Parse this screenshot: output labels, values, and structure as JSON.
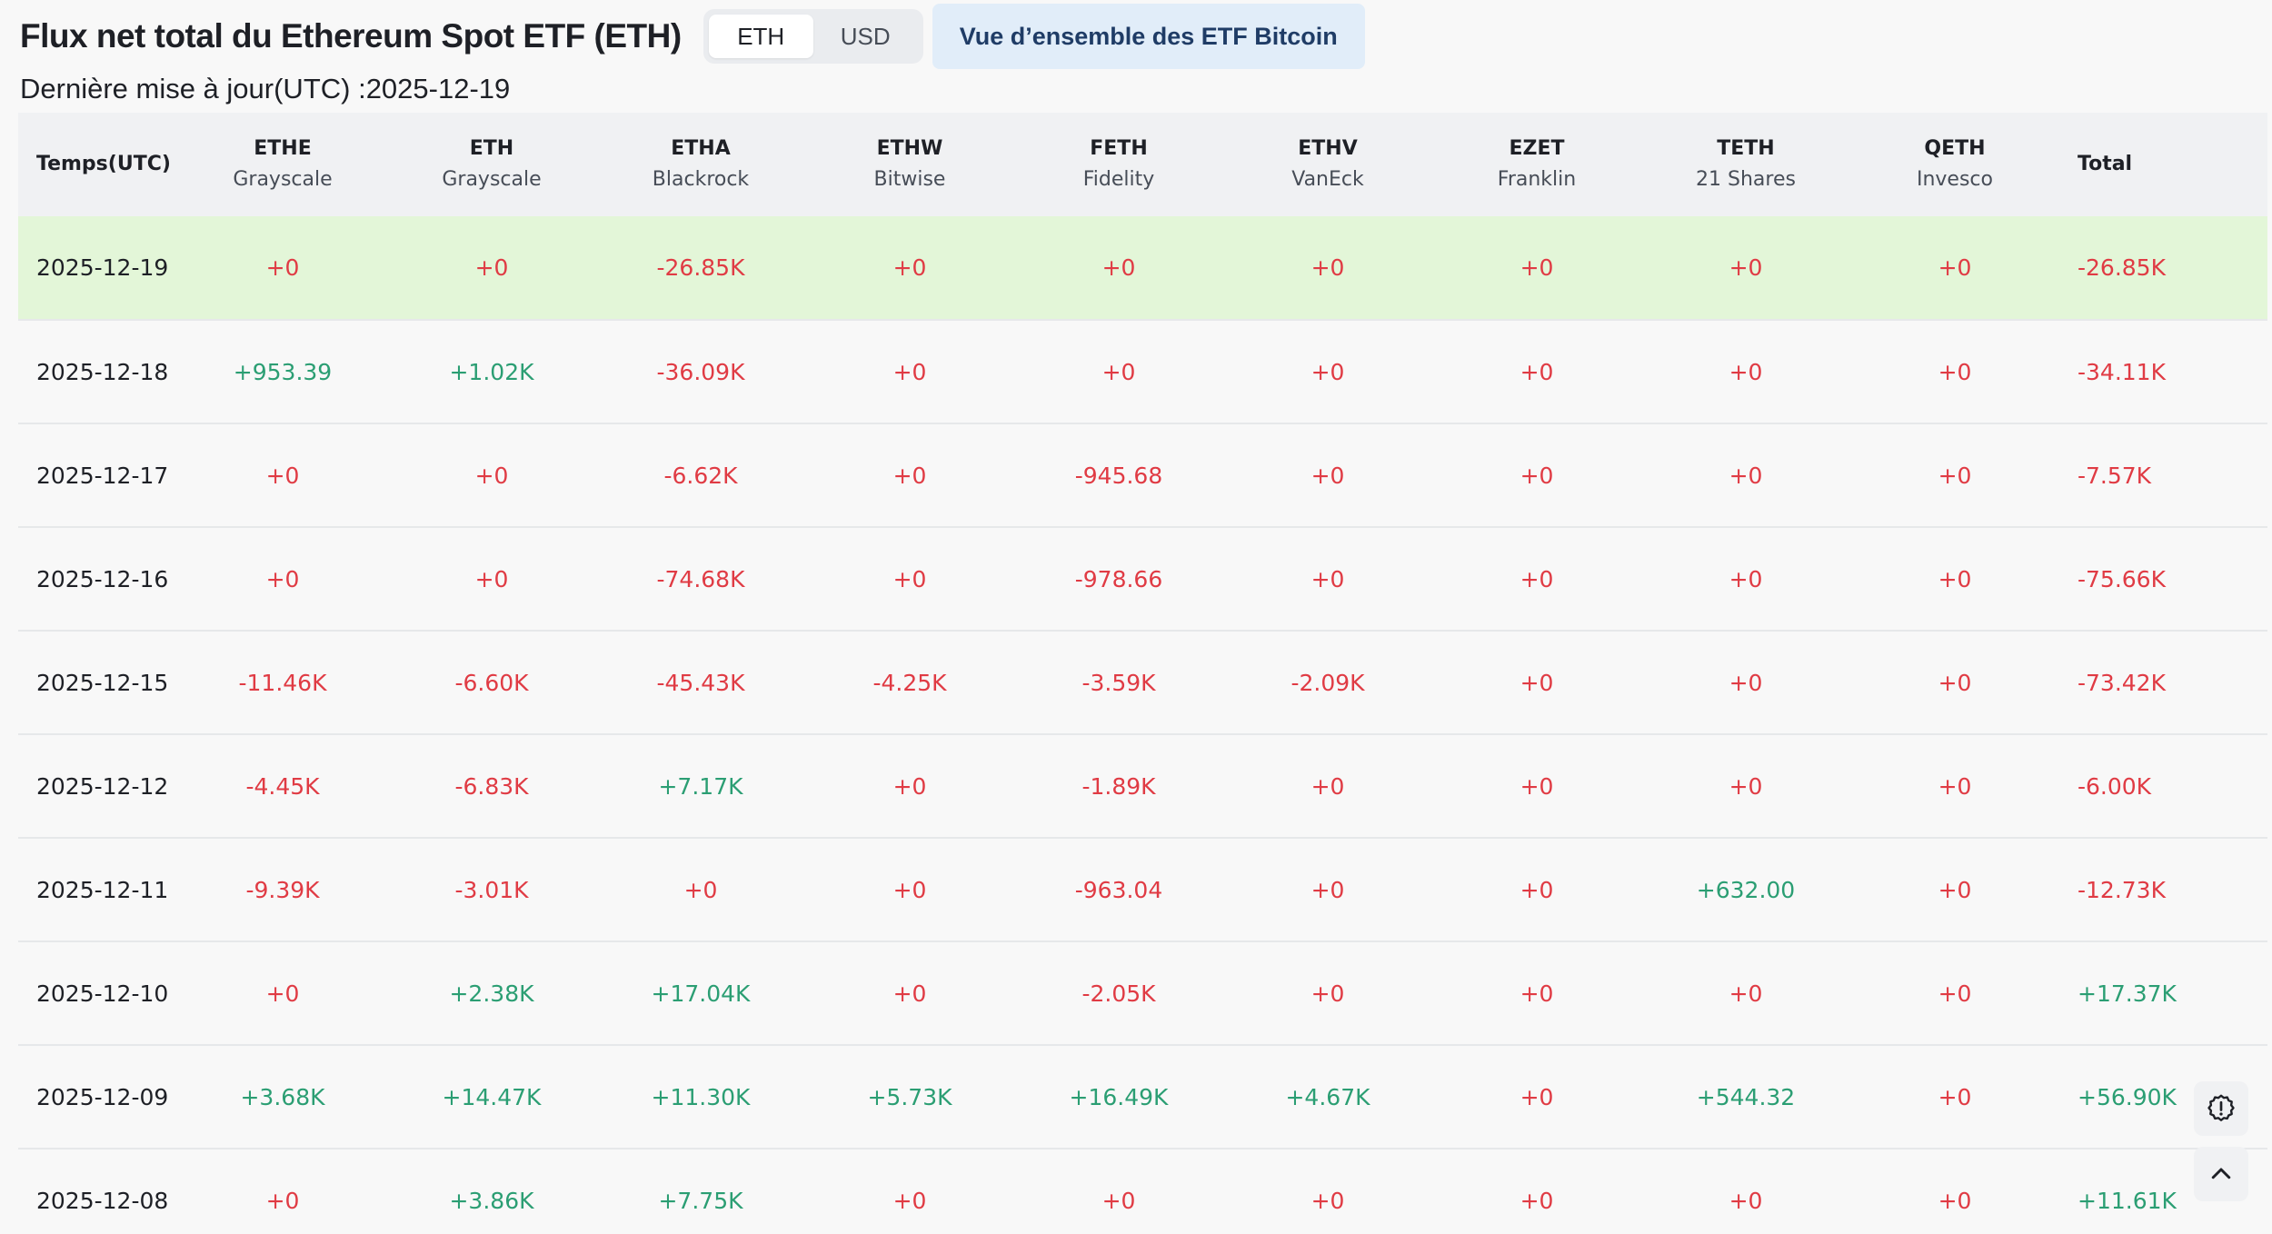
{
  "header": {
    "title": "Flux net total du Ethereum Spot ETF (ETH)",
    "currency_toggle": [
      "ETH",
      "USD"
    ],
    "active_currency": "ETH",
    "overview_button": "Vue d’ensemble des ETF Bitcoin",
    "last_updated": "Dernière mise à jour(UTC) :2025-12-19"
  },
  "colors": {
    "positive": "#2b9e73",
    "negative": "#e03b44",
    "highlight_row": "#e3f6d8",
    "overview_bg": "#e1edf9"
  },
  "table": {
    "date_header": "Temps(UTC)",
    "total_header": "Total",
    "columns": [
      {
        "symbol": "ETHE",
        "issuer": "Grayscale"
      },
      {
        "symbol": "ETH",
        "issuer": "Grayscale"
      },
      {
        "symbol": "ETHA",
        "issuer": "Blackrock"
      },
      {
        "symbol": "ETHW",
        "issuer": "Bitwise"
      },
      {
        "symbol": "FETH",
        "issuer": "Fidelity"
      },
      {
        "symbol": "ETHV",
        "issuer": "VanEck"
      },
      {
        "symbol": "EZET",
        "issuer": "Franklin"
      },
      {
        "symbol": "TETH",
        "issuer": "21 Shares"
      },
      {
        "symbol": "QETH",
        "issuer": "Invesco"
      }
    ],
    "rows": [
      {
        "date": "2025-12-19",
        "highlight": true,
        "values": [
          "+0",
          "+0",
          "-26.85K",
          "+0",
          "+0",
          "+0",
          "+0",
          "+0",
          "+0"
        ],
        "total": "-26.85K"
      },
      {
        "date": "2025-12-18",
        "highlight": false,
        "values": [
          "+953.39",
          "+1.02K",
          "-36.09K",
          "+0",
          "+0",
          "+0",
          "+0",
          "+0",
          "+0"
        ],
        "total": "-34.11K"
      },
      {
        "date": "2025-12-17",
        "highlight": false,
        "values": [
          "+0",
          "+0",
          "-6.62K",
          "+0",
          "-945.68",
          "+0",
          "+0",
          "+0",
          "+0"
        ],
        "total": "-7.57K"
      },
      {
        "date": "2025-12-16",
        "highlight": false,
        "values": [
          "+0",
          "+0",
          "-74.68K",
          "+0",
          "-978.66",
          "+0",
          "+0",
          "+0",
          "+0"
        ],
        "total": "-75.66K"
      },
      {
        "date": "2025-12-15",
        "highlight": false,
        "values": [
          "-11.46K",
          "-6.60K",
          "-45.43K",
          "-4.25K",
          "-3.59K",
          "-2.09K",
          "+0",
          "+0",
          "+0"
        ],
        "total": "-73.42K"
      },
      {
        "date": "2025-12-12",
        "highlight": false,
        "values": [
          "-4.45K",
          "-6.83K",
          "+7.17K",
          "+0",
          "-1.89K",
          "+0",
          "+0",
          "+0",
          "+0"
        ],
        "total": "-6.00K"
      },
      {
        "date": "2025-12-11",
        "highlight": false,
        "values": [
          "-9.39K",
          "-3.01K",
          "+0",
          "+0",
          "-963.04",
          "+0",
          "+0",
          "+632.00",
          "+0"
        ],
        "total": "-12.73K"
      },
      {
        "date": "2025-12-10",
        "highlight": false,
        "values": [
          "+0",
          "+2.38K",
          "+17.04K",
          "+0",
          "-2.05K",
          "+0",
          "+0",
          "+0",
          "+0"
        ],
        "total": "+17.37K"
      },
      {
        "date": "2025-12-09",
        "highlight": false,
        "values": [
          "+3.68K",
          "+14.47K",
          "+11.30K",
          "+5.73K",
          "+16.49K",
          "+4.67K",
          "+0",
          "+544.32",
          "+0"
        ],
        "total": "+56.90K"
      },
      {
        "date": "2025-12-08",
        "highlight": false,
        "values": [
          "+0",
          "+3.86K",
          "+7.75K",
          "+0",
          "+0",
          "+0",
          "+0",
          "+0",
          "+0"
        ],
        "total": "+11.61K"
      }
    ]
  },
  "floating": {
    "settings_icon": "gear-icon",
    "scroll_top_icon": "chevron-up-icon"
  }
}
